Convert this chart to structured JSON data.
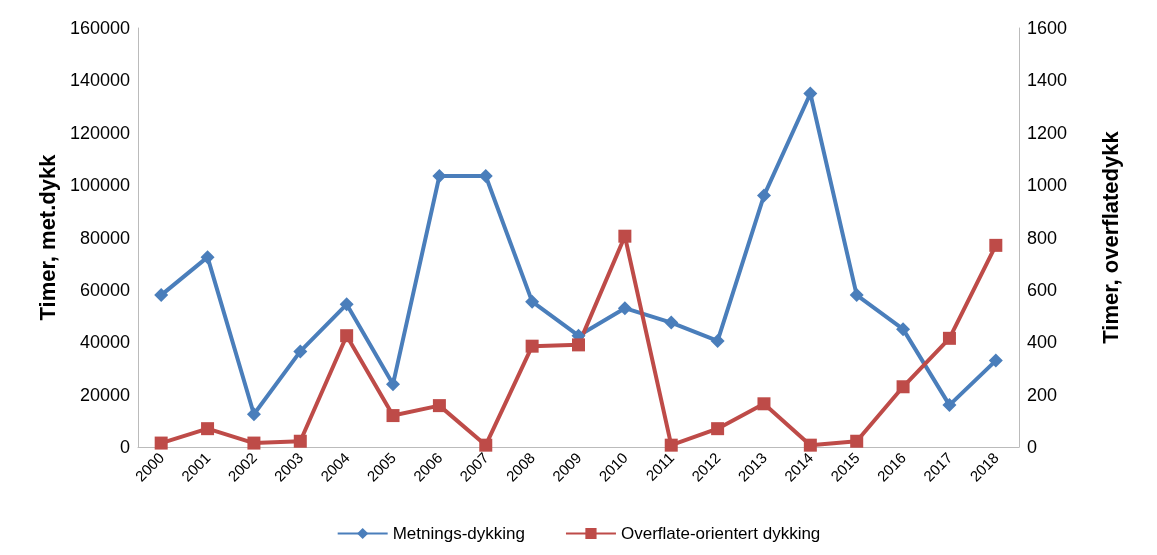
{
  "chart_data": {
    "type": "line",
    "ylabel": "Timer, met.dykk",
    "y2label": "Timer, overflatedykk",
    "categories": [
      "2000",
      "2001",
      "2002",
      "2003",
      "2004",
      "2005",
      "2006",
      "2007",
      "2008",
      "2009",
      "2010",
      "2011",
      "2012",
      "2013",
      "2014",
      "2015",
      "2016",
      "2017",
      "2018"
    ],
    "series": [
      {
        "name": "Metnings-dykking",
        "color": "#4a7ebb",
        "marker": "diamond",
        "values": [
          58000,
          72500,
          12500,
          36500,
          54500,
          24000,
          103500,
          103500,
          55500,
          42500,
          53000,
          47500,
          40500,
          96000,
          135000,
          58000,
          45000,
          16000,
          33000
        ]
      },
      {
        "name": "Overflate-orientert dykking",
        "color": "#be4b48",
        "marker": "square",
        "axis": "y2",
        "values": [
          15,
          70,
          15,
          22,
          425,
          120,
          158,
          7,
          385,
          390,
          805,
          7,
          70,
          165,
          7,
          22,
          230,
          415,
          770
        ]
      }
    ],
    "ylim": [
      0,
      160000
    ],
    "yticks": [
      0,
      20000,
      40000,
      60000,
      80000,
      100000,
      120000,
      140000,
      160000
    ],
    "y2lim": [
      0,
      1600
    ],
    "y2ticks": [
      0,
      200,
      400,
      600,
      800,
      1000,
      1200,
      1400,
      1600
    ],
    "grid": false,
    "legend": "bottom"
  }
}
